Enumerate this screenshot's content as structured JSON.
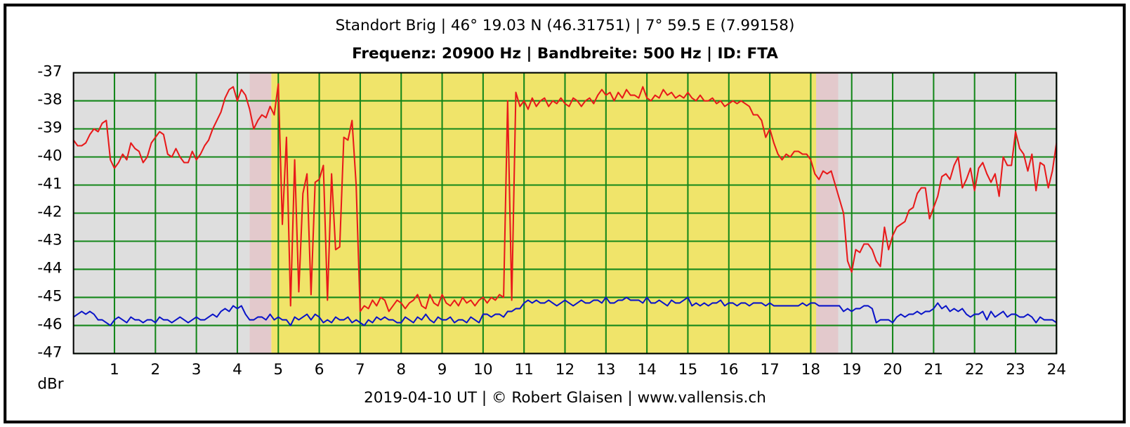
{
  "chart_data": {
    "type": "line",
    "title": "Standort Brig | 46° 19.03 N (46.31751) | 7° 59.5 E (7.99158)",
    "subtitle": "Frequenz: 20900 Hz | Bandbreite: 500 Hz | ID: FTA",
    "y_label": "dBr",
    "footer": "2019-04-10 UT | © Robert Glaisen | www.vallensis.ch",
    "xlim": [
      0,
      24
    ],
    "xticks": [
      1,
      2,
      3,
      4,
      5,
      6,
      7,
      8,
      9,
      10,
      11,
      12,
      13,
      14,
      15,
      16,
      17,
      18,
      19,
      20,
      21,
      22,
      23,
      24
    ],
    "ylim": [
      -47,
      -37
    ],
    "yticks": [
      -47,
      -46,
      -45,
      -44,
      -43,
      -42,
      -41,
      -40,
      -39,
      -38,
      -37
    ],
    "grid": true,
    "grid_color": "#14871a",
    "bands": [
      {
        "start": 0,
        "end": 4.3,
        "color": "#dedede"
      },
      {
        "start": 4.3,
        "end": 4.83,
        "color": "#e3c9cc"
      },
      {
        "start": 4.83,
        "end": 18.13,
        "color": "#f0e46a"
      },
      {
        "start": 18.13,
        "end": 18.67,
        "color": "#e3c9cc"
      },
      {
        "start": 18.67,
        "end": 24,
        "color": "#dedede"
      }
    ],
    "x": [
      0,
      0.1,
      0.2,
      0.3,
      0.4,
      0.5,
      0.6,
      0.7,
      0.8,
      0.9,
      1,
      1.1,
      1.2,
      1.3,
      1.4,
      1.5,
      1.6,
      1.7,
      1.8,
      1.9,
      2,
      2.1,
      2.2,
      2.3,
      2.4,
      2.5,
      2.6,
      2.7,
      2.8,
      2.9,
      3,
      3.1,
      3.2,
      3.3,
      3.4,
      3.5,
      3.6,
      3.7,
      3.8,
      3.9,
      4,
      4.1,
      4.2,
      4.3,
      4.4,
      4.5,
      4.6,
      4.7,
      4.8,
      4.9,
      5,
      5.1,
      5.2,
      5.3,
      5.4,
      5.5,
      5.6,
      5.7,
      5.8,
      5.9,
      6,
      6.1,
      6.2,
      6.3,
      6.4,
      6.5,
      6.6,
      6.7,
      6.8,
      6.9,
      7,
      7.1,
      7.2,
      7.3,
      7.4,
      7.5,
      7.6,
      7.7,
      7.8,
      7.9,
      8,
      8.1,
      8.2,
      8.3,
      8.4,
      8.5,
      8.6,
      8.7,
      8.8,
      8.9,
      9,
      9.1,
      9.2,
      9.3,
      9.4,
      9.5,
      9.6,
      9.7,
      9.8,
      9.9,
      10,
      10.1,
      10.2,
      10.3,
      10.4,
      10.5,
      10.6,
      10.7,
      10.8,
      10.9,
      11,
      11.1,
      11.2,
      11.3,
      11.4,
      11.5,
      11.6,
      11.7,
      11.8,
      11.9,
      12,
      12.1,
      12.2,
      12.3,
      12.4,
      12.5,
      12.6,
      12.7,
      12.8,
      12.9,
      13,
      13.1,
      13.2,
      13.3,
      13.4,
      13.5,
      13.6,
      13.7,
      13.8,
      13.9,
      14,
      14.1,
      14.2,
      14.3,
      14.4,
      14.5,
      14.6,
      14.7,
      14.8,
      14.9,
      15,
      15.1,
      15.2,
      15.3,
      15.4,
      15.5,
      15.6,
      15.7,
      15.8,
      15.9,
      16,
      16.1,
      16.2,
      16.3,
      16.4,
      16.5,
      16.6,
      16.7,
      16.8,
      16.9,
      17,
      17.1,
      17.2,
      17.3,
      17.4,
      17.5,
      17.6,
      17.7,
      17.8,
      17.9,
      18,
      18.1,
      18.2,
      18.3,
      18.4,
      18.5,
      18.6,
      18.7,
      18.8,
      18.9,
      19,
      19.1,
      19.2,
      19.3,
      19.4,
      19.5,
      19.6,
      19.7,
      19.8,
      19.9,
      20,
      20.1,
      20.2,
      20.3,
      20.4,
      20.5,
      20.6,
      20.7,
      20.8,
      20.9,
      21,
      21.1,
      21.2,
      21.3,
      21.4,
      21.5,
      21.6,
      21.7,
      21.8,
      21.9,
      22,
      22.1,
      22.2,
      22.3,
      22.4,
      22.5,
      22.6,
      22.7,
      22.8,
      22.9,
      23,
      23.1,
      23.2,
      23.3,
      23.4,
      23.5,
      23.6,
      23.7,
      23.8,
      23.9,
      24
    ],
    "series": [
      {
        "color": "#e8191a",
        "values": [
          -39.4,
          -39.6,
          -39.6,
          -39.5,
          -39.2,
          -39.0,
          -39.1,
          -38.8,
          -38.7,
          -40.1,
          -40.4,
          -40.2,
          -39.9,
          -40.1,
          -39.5,
          -39.7,
          -39.8,
          -40.2,
          -40.0,
          -39.5,
          -39.3,
          -39.1,
          -39.2,
          -39.9,
          -40.0,
          -39.7,
          -40.0,
          -40.2,
          -40.2,
          -39.8,
          -40.1,
          -39.9,
          -39.6,
          -39.4,
          -39.0,
          -38.7,
          -38.4,
          -37.9,
          -37.6,
          -37.5,
          -38.0,
          -37.6,
          -37.8,
          -38.3,
          -39.0,
          -38.7,
          -38.5,
          -38.6,
          -38.2,
          -38.5,
          -37.4,
          -42.4,
          -39.3,
          -45.3,
          -40.1,
          -44.8,
          -41.3,
          -40.6,
          -44.9,
          -40.9,
          -40.8,
          -40.3,
          -45.1,
          -40.6,
          -43.3,
          -43.2,
          -39.3,
          -39.4,
          -38.7,
          -41.0,
          -45.5,
          -45.3,
          -45.4,
          -45.1,
          -45.3,
          -45.0,
          -45.1,
          -45.5,
          -45.3,
          -45.1,
          -45.2,
          -45.4,
          -45.2,
          -45.1,
          -44.9,
          -45.3,
          -45.4,
          -44.9,
          -45.2,
          -45.3,
          -44.9,
          -45.2,
          -45.3,
          -45.1,
          -45.3,
          -45.0,
          -45.2,
          -45.1,
          -45.3,
          -45.1,
          -45.0,
          -45.2,
          -45.0,
          -45.1,
          -44.9,
          -45.0,
          -38.0,
          -45.1,
          -37.7,
          -38.2,
          -38.0,
          -38.3,
          -37.9,
          -38.2,
          -38.0,
          -37.9,
          -38.2,
          -38.0,
          -38.1,
          -37.9,
          -38.1,
          -38.2,
          -37.9,
          -38.0,
          -38.2,
          -38.0,
          -37.9,
          -38.1,
          -37.8,
          -37.6,
          -37.8,
          -37.7,
          -38.0,
          -37.7,
          -37.9,
          -37.6,
          -37.8,
          -37.8,
          -37.9,
          -37.5,
          -37.9,
          -38.0,
          -37.8,
          -37.9,
          -37.6,
          -37.8,
          -37.7,
          -37.9,
          -37.8,
          -37.9,
          -37.7,
          -37.9,
          -38.0,
          -37.8,
          -38.0,
          -38.0,
          -37.9,
          -38.1,
          -38.0,
          -38.2,
          -38.1,
          -38.0,
          -38.1,
          -38.0,
          -38.1,
          -38.2,
          -38.5,
          -38.5,
          -38.7,
          -39.3,
          -39.0,
          -39.5,
          -39.9,
          -40.1,
          -39.9,
          -40.0,
          -39.8,
          -39.8,
          -39.9,
          -39.9,
          -40.1,
          -40.6,
          -40.8,
          -40.5,
          -40.6,
          -40.5,
          -41.0,
          -41.5,
          -42.0,
          -43.7,
          -44.1,
          -43.3,
          -43.4,
          -43.1,
          -43.1,
          -43.3,
          -43.7,
          -43.9,
          -42.5,
          -43.3,
          -42.8,
          -42.5,
          -42.4,
          -42.3,
          -41.9,
          -41.8,
          -41.3,
          -41.1,
          -41.1,
          -42.2,
          -41.8,
          -41.4,
          -40.7,
          -40.6,
          -40.8,
          -40.3,
          -40.0,
          -41.1,
          -40.8,
          -40.4,
          -41.2,
          -40.4,
          -40.2,
          -40.6,
          -40.9,
          -40.6,
          -41.4,
          -40.0,
          -40.3,
          -40.3,
          -39.1,
          -39.7,
          -39.9,
          -40.5,
          -39.9,
          -41.2,
          -40.2,
          -40.3,
          -41.1,
          -40.5,
          -39.5
        ]
      },
      {
        "color": "#0a14c8",
        "values": [
          -45.7,
          -45.6,
          -45.5,
          -45.6,
          -45.5,
          -45.6,
          -45.8,
          -45.8,
          -45.9,
          -46.0,
          -45.8,
          -45.7,
          -45.8,
          -45.9,
          -45.7,
          -45.8,
          -45.8,
          -45.9,
          -45.8,
          -45.8,
          -45.9,
          -45.7,
          -45.8,
          -45.8,
          -45.9,
          -45.8,
          -45.7,
          -45.8,
          -45.9,
          -45.8,
          -45.7,
          -45.8,
          -45.8,
          -45.7,
          -45.6,
          -45.7,
          -45.5,
          -45.4,
          -45.5,
          -45.3,
          -45.4,
          -45.3,
          -45.6,
          -45.8,
          -45.8,
          -45.7,
          -45.7,
          -45.8,
          -45.6,
          -45.8,
          -45.7,
          -45.8,
          -45.8,
          -46.0,
          -45.7,
          -45.8,
          -45.7,
          -45.6,
          -45.8,
          -45.6,
          -45.7,
          -45.9,
          -45.8,
          -45.9,
          -45.7,
          -45.8,
          -45.8,
          -45.7,
          -45.9,
          -45.8,
          -45.9,
          -46.0,
          -45.8,
          -45.9,
          -45.7,
          -45.8,
          -45.7,
          -45.8,
          -45.8,
          -45.9,
          -45.9,
          -45.7,
          -45.8,
          -45.9,
          -45.7,
          -45.8,
          -45.6,
          -45.8,
          -45.9,
          -45.7,
          -45.8,
          -45.8,
          -45.7,
          -45.9,
          -45.8,
          -45.8,
          -45.9,
          -45.7,
          -45.8,
          -45.9,
          -45.6,
          -45.6,
          -45.7,
          -45.6,
          -45.6,
          -45.7,
          -45.5,
          -45.5,
          -45.4,
          -45.4,
          -45.2,
          -45.1,
          -45.2,
          -45.1,
          -45.2,
          -45.2,
          -45.1,
          -45.2,
          -45.3,
          -45.2,
          -45.1,
          -45.2,
          -45.3,
          -45.2,
          -45.1,
          -45.2,
          -45.2,
          -45.1,
          -45.1,
          -45.2,
          -45.0,
          -45.2,
          -45.2,
          -45.1,
          -45.1,
          -45.0,
          -45.1,
          -45.1,
          -45.1,
          -45.2,
          -45.0,
          -45.2,
          -45.2,
          -45.1,
          -45.2,
          -45.3,
          -45.1,
          -45.2,
          -45.2,
          -45.1,
          -45.0,
          -45.3,
          -45.2,
          -45.3,
          -45.2,
          -45.3,
          -45.2,
          -45.2,
          -45.1,
          -45.3,
          -45.2,
          -45.2,
          -45.3,
          -45.2,
          -45.2,
          -45.3,
          -45.2,
          -45.2,
          -45.2,
          -45.3,
          -45.2,
          -45.3,
          -45.3,
          -45.3,
          -45.3,
          -45.3,
          -45.3,
          -45.3,
          -45.2,
          -45.3,
          -45.2,
          -45.2,
          -45.3,
          -45.3,
          -45.3,
          -45.3,
          -45.3,
          -45.3,
          -45.5,
          -45.4,
          -45.5,
          -45.4,
          -45.4,
          -45.3,
          -45.3,
          -45.4,
          -45.9,
          -45.8,
          -45.8,
          -45.8,
          -45.9,
          -45.7,
          -45.6,
          -45.7,
          -45.6,
          -45.6,
          -45.5,
          -45.6,
          -45.5,
          -45.5,
          -45.4,
          -45.2,
          -45.4,
          -45.3,
          -45.5,
          -45.4,
          -45.5,
          -45.4,
          -45.6,
          -45.7,
          -45.6,
          -45.6,
          -45.5,
          -45.8,
          -45.5,
          -45.7,
          -45.6,
          -45.5,
          -45.7,
          -45.6,
          -45.6,
          -45.7,
          -45.7,
          -45.6,
          -45.7,
          -45.9,
          -45.7,
          -45.8,
          -45.8,
          -45.8,
          -45.9
        ]
      }
    ]
  }
}
